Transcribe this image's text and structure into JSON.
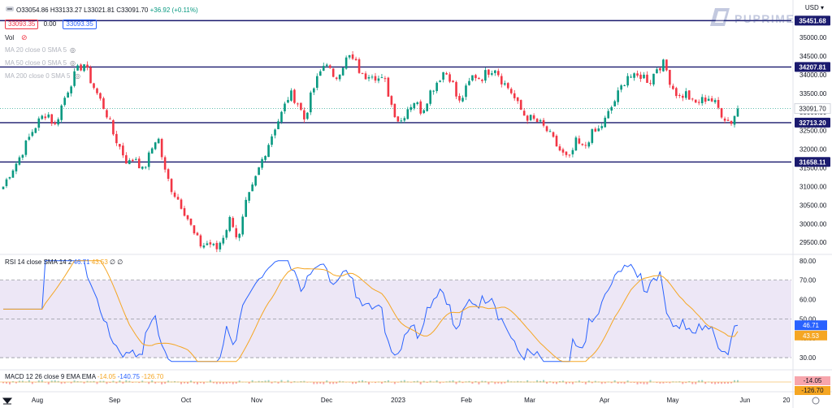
{
  "header": {
    "ohlc_text": "O33054.86 H33133.27 L33021.81 C33091.70",
    "change_text": "+36.92 (+0.11%)",
    "price_chip_left": "33093.35",
    "spread": "0.00",
    "price_chip_right": "33093.35",
    "currency": "USD",
    "vol_label": "Vol",
    "indicators": [
      "MA 20 close 0 SMA 5",
      "MA 50 close 0 SMA 5",
      "MA 200 close 0 SMA 5"
    ]
  },
  "brand": {
    "logo_text": "PUPRIME"
  },
  "colors": {
    "up": "#089981",
    "down": "#f23645",
    "hline": "#1a1a6e",
    "rsi": "#2962ff",
    "rsi_ma": "#f5a623",
    "rsi_band": "#ede7f6",
    "price_tag": "#ffffff"
  },
  "chart_data": {
    "type": "candlestick",
    "x_ticks": [
      "Aug",
      "Sep",
      "Oct",
      "Nov",
      "Dec",
      "2023",
      "Feb",
      "Mar",
      "Apr",
      "May",
      "Jun",
      "20"
    ],
    "y_ticks": [
      29500,
      30000,
      30500,
      31000,
      31500,
      32000,
      32500,
      33000,
      33500,
      34000,
      34500,
      35000
    ],
    "y_range": [
      29200,
      35700
    ],
    "last_price": 33091.7,
    "horizontal_levels": [
      35451.68,
      34207.81,
      32713.2,
      31658.11
    ],
    "close_path": [
      31000,
      31400,
      31700,
      32100,
      32500,
      32800,
      33000,
      32600,
      33200,
      33700,
      34100,
      34300,
      33800,
      33400,
      33000,
      32400,
      32000,
      31600,
      31800,
      31400,
      31900,
      32400,
      31400,
      30900,
      30600,
      30200,
      29700,
      29400,
      29500,
      29300,
      29700,
      30200,
      29500,
      30500,
      31000,
      31600,
      32100,
      32600,
      33000,
      33500,
      33300,
      32800,
      33500,
      34000,
      34400,
      33800,
      34200,
      34500,
      34300,
      33900,
      34100,
      33900,
      33800,
      33100,
      32700,
      33100,
      33300,
      33000,
      33500,
      33800,
      34100,
      33900,
      33200,
      33600,
      34000,
      33900,
      34100,
      34200,
      33800,
      33600,
      33200,
      32900,
      32800,
      32700,
      32500,
      32200,
      31900,
      31700,
      32200,
      32000,
      32400,
      32500,
      32800,
      33200,
      33600,
      34000,
      33900,
      34000,
      33800,
      34200,
      34300,
      33700,
      33400,
      33500,
      33200,
      33300,
      33400,
      33200,
      32900,
      32700,
      33091.7
    ],
    "rsi": {
      "label": "RSI 14 close SMA 14 2",
      "value": 46.71,
      "ma_value": 43.53,
      "y_ticks": [
        30,
        40,
        50,
        60,
        70,
        80
      ],
      "band": [
        30,
        70
      ],
      "tick_labels": [
        "30.00",
        "40.00",
        "50.00",
        "60.00",
        "70.00",
        "80.00"
      ],
      "value_label": "46.71",
      "ma_label": "43.53",
      "na": "∅ ∅"
    },
    "macd": {
      "label": "MACD 12 26 close 9 EMA EMA",
      "values_label": [
        "-14.05",
        "-140.75",
        "-126.70"
      ],
      "axis_labels": [
        "-14.05",
        "-126.70"
      ]
    },
    "price_labels": {
      "last": "33091.70",
      "levels": [
        "35451.68",
        "34207.81",
        "32713.20",
        "31658.11"
      ]
    }
  }
}
